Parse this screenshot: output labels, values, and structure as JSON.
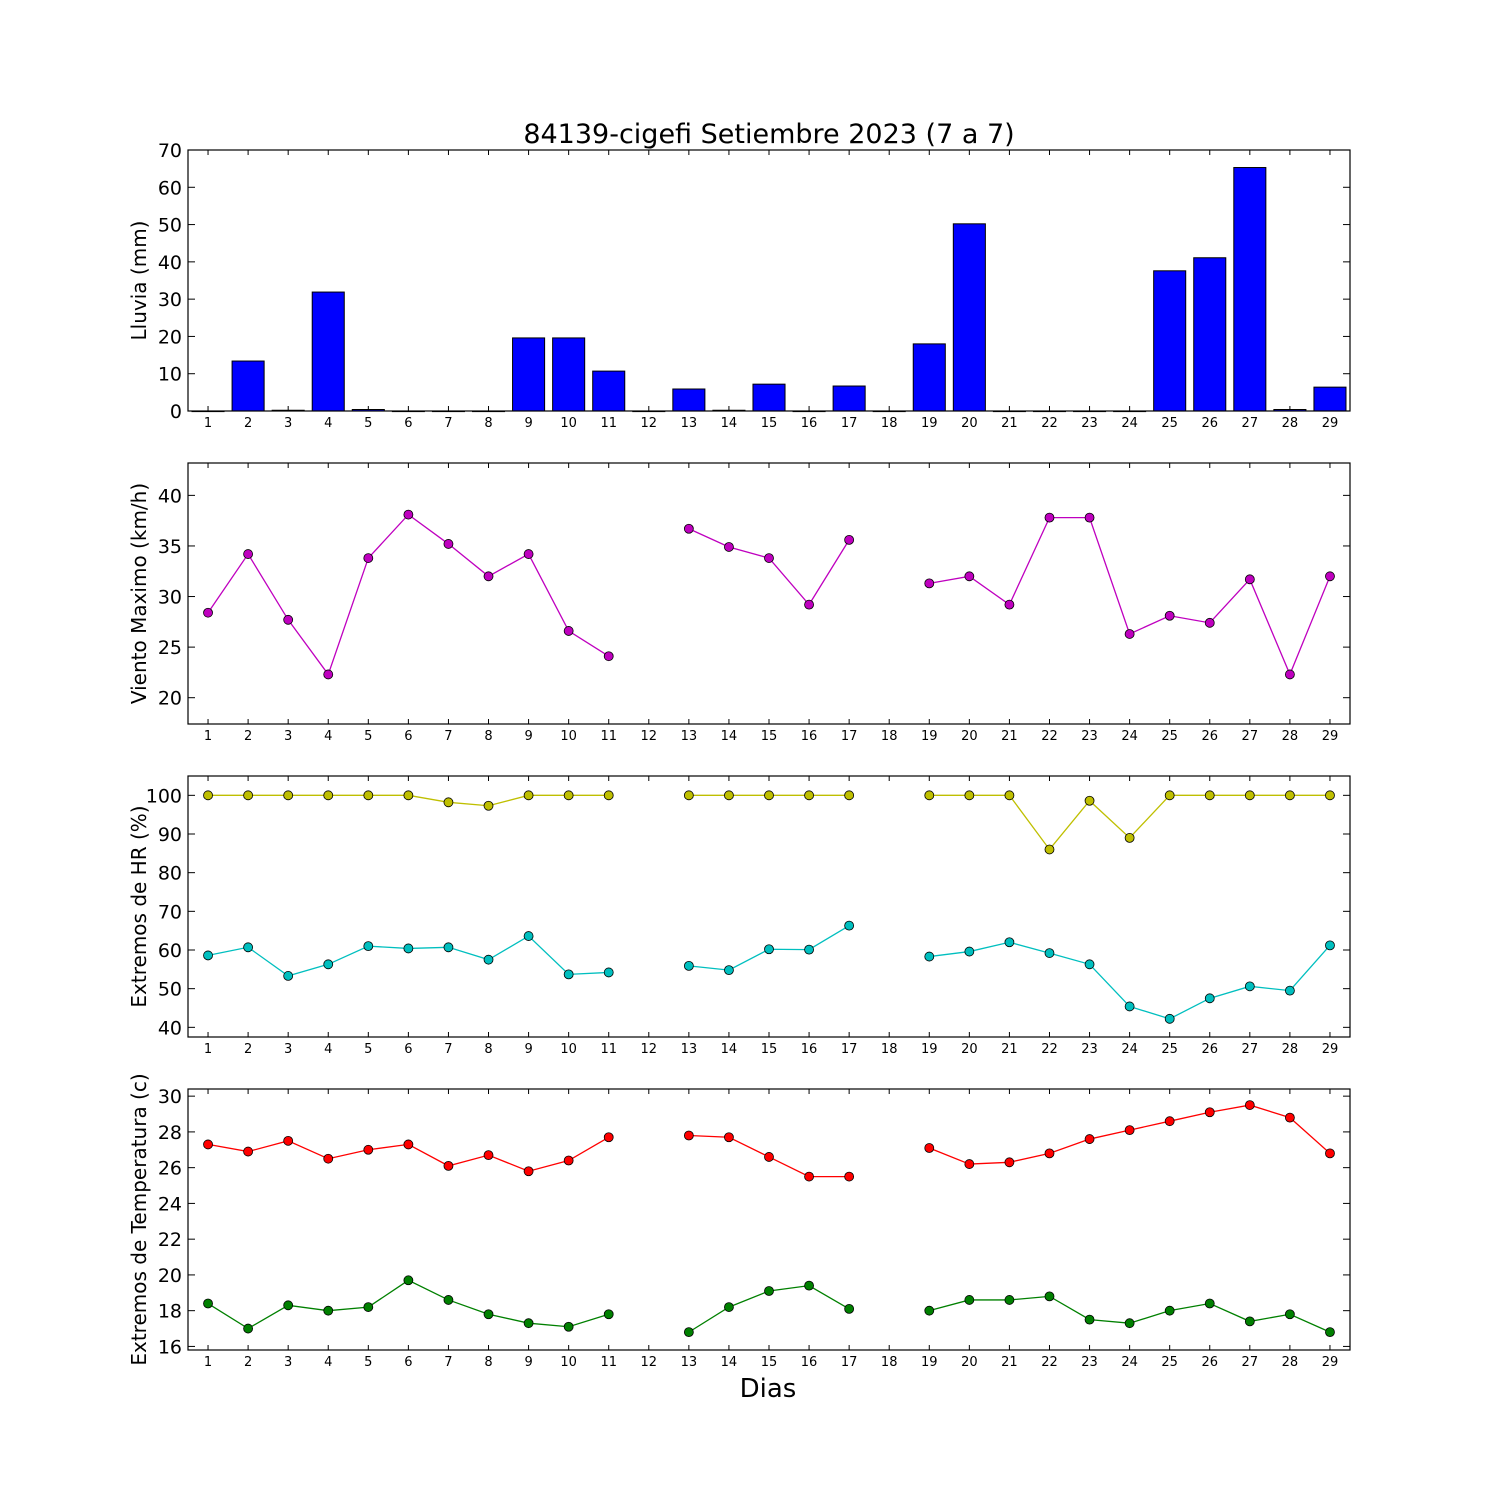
{
  "figure": {
    "title": "84139-cigefi Setiembre 2023  (7 a 7)",
    "xlabel": "Dias"
  },
  "chart_data": [
    {
      "type": "bar",
      "ylabel": "Lluvia (mm)",
      "ylim": [
        0,
        70
      ],
      "yticks": [
        0,
        10,
        20,
        30,
        40,
        50,
        60,
        70
      ],
      "categories": [
        1,
        2,
        3,
        4,
        5,
        6,
        7,
        8,
        9,
        10,
        11,
        12,
        13,
        14,
        15,
        16,
        17,
        18,
        19,
        20,
        21,
        22,
        23,
        24,
        25,
        26,
        27,
        28,
        29
      ],
      "series": [
        {
          "values": [
            0,
            13.4,
            0.2,
            31.9,
            0.4,
            0,
            0,
            0,
            19.6,
            19.6,
            10.7,
            0,
            5.9,
            0.2,
            7.2,
            0,
            6.7,
            0,
            18.0,
            50.2,
            0,
            0,
            0,
            0,
            37.6,
            41.1,
            65.3,
            0.4,
            6.4
          ],
          "color": "#0000ff"
        }
      ]
    },
    {
      "type": "line",
      "ylabel": "Viento Maximo (km/h)",
      "ylim": [
        17.4,
        43.2
      ],
      "yticks": [
        20,
        25,
        30,
        35,
        40
      ],
      "categories": [
        1,
        2,
        3,
        4,
        5,
        6,
        7,
        8,
        9,
        10,
        11,
        12,
        13,
        14,
        15,
        16,
        17,
        18,
        19,
        20,
        21,
        22,
        23,
        24,
        25,
        26,
        27,
        28,
        29
      ],
      "series": [
        {
          "values": [
            28.4,
            34.2,
            27.7,
            22.3,
            33.8,
            38.1,
            35.2,
            32.0,
            34.2,
            26.6,
            24.1,
            null,
            36.7,
            34.9,
            33.8,
            29.2,
            35.6,
            null,
            31.3,
            32.0,
            29.2,
            37.8,
            37.8,
            26.3,
            28.1,
            27.4,
            31.7,
            22.3,
            32.0
          ],
          "color": "#bf00bf"
        }
      ]
    },
    {
      "type": "line",
      "ylabel": "Extremos de HR (%)",
      "ylim": [
        37.5,
        105
      ],
      "yticks": [
        40,
        50,
        60,
        70,
        80,
        90,
        100
      ],
      "categories": [
        1,
        2,
        3,
        4,
        5,
        6,
        7,
        8,
        9,
        10,
        11,
        12,
        13,
        14,
        15,
        16,
        17,
        18,
        19,
        20,
        21,
        22,
        23,
        24,
        25,
        26,
        27,
        28,
        29
      ],
      "series": [
        {
          "values": [
            100,
            100,
            100,
            100,
            100,
            100,
            98.2,
            97.3,
            100,
            100,
            100,
            null,
            100,
            100,
            100,
            100,
            100,
            null,
            100,
            100,
            100,
            86.0,
            98.6,
            89.0,
            100,
            100,
            100,
            100,
            100
          ],
          "color": "#bfbf00"
        },
        {
          "values": [
            58.6,
            60.7,
            53.3,
            56.3,
            61.0,
            60.4,
            60.7,
            57.5,
            63.6,
            53.7,
            54.2,
            null,
            55.9,
            54.8,
            60.2,
            60.1,
            66.3,
            null,
            58.3,
            59.6,
            62.0,
            59.2,
            56.3,
            45.4,
            42.2,
            47.5,
            50.6,
            49.5,
            61.2
          ],
          "color": "#00bfbf"
        }
      ]
    },
    {
      "type": "line",
      "ylabel": "Extremos de Temperatura (c)",
      "ylim": [
        15.8,
        30.4
      ],
      "yticks": [
        16,
        18,
        20,
        22,
        24,
        26,
        28,
        30
      ],
      "categories": [
        1,
        2,
        3,
        4,
        5,
        6,
        7,
        8,
        9,
        10,
        11,
        12,
        13,
        14,
        15,
        16,
        17,
        18,
        19,
        20,
        21,
        22,
        23,
        24,
        25,
        26,
        27,
        28,
        29
      ],
      "series": [
        {
          "values": [
            27.3,
            26.9,
            27.5,
            26.5,
            27.0,
            27.3,
            26.1,
            26.7,
            25.8,
            26.4,
            27.7,
            null,
            27.8,
            27.7,
            26.6,
            25.5,
            25.5,
            null,
            27.1,
            26.2,
            26.3,
            26.8,
            27.6,
            28.1,
            28.6,
            29.1,
            29.5,
            28.8,
            26.8
          ],
          "color": "#ff0000"
        },
        {
          "values": [
            18.4,
            17.0,
            18.3,
            18.0,
            18.2,
            19.7,
            18.6,
            17.8,
            17.3,
            17.1,
            17.8,
            null,
            16.8,
            18.2,
            19.1,
            19.4,
            18.1,
            null,
            18.0,
            18.6,
            18.6,
            18.8,
            17.5,
            17.3,
            18.0,
            18.4,
            17.4,
            17.8,
            16.8
          ],
          "color": "#008000"
        }
      ]
    }
  ]
}
